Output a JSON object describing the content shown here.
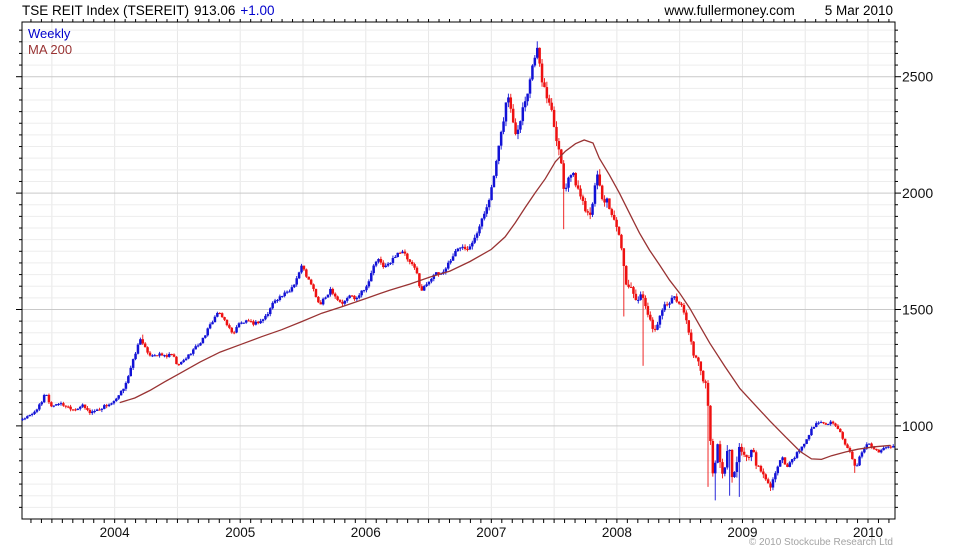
{
  "header": {
    "title": "TSE REIT Index (TSEREIT)",
    "last_price": "913.06",
    "change": "+1.00",
    "website": "www.fullermoney.com",
    "date": "5 Mar 2010"
  },
  "legend": {
    "series_1_label": "Weekly",
    "series_2_label": "MA 200"
  },
  "footer": {
    "copyright": "© 2010 Stockcube Research Ltd"
  },
  "colors": {
    "candle_up": "#1212d6",
    "candle_down": "#ee1111",
    "ma_line": "#993333",
    "legend_weekly": "#0000cc",
    "legend_ma": "#993333",
    "change_text": "#0000cc",
    "grid_minor": "#ededed",
    "grid_major": "#c9c9c9",
    "grid_vertical": "#e7e7e7",
    "axis": "#000000",
    "label_text": "#111111",
    "copyright_text": "#a3a3a3"
  },
  "chart_data": {
    "type": "candlestick",
    "title": "TSE REIT Index (TSEREIT) weekly candles with MA 200",
    "last_close": 913.06,
    "change": "+1.00",
    "x_axis": {
      "start_decimal_year": 2003.262,
      "end_decimal_year": 2010.215,
      "year_tick_labels": [
        "2004",
        "2005",
        "2006",
        "2007",
        "2008",
        "2009",
        "2010"
      ],
      "minor_ticks": "monthly",
      "vertical_gridlines": "January and July"
    },
    "y_axis": {
      "min": 600,
      "max": 2735,
      "minor_step": 50,
      "major_step": 500,
      "tick_labels": [
        "1000",
        "1500",
        "2000",
        "2500"
      ],
      "side": "right"
    },
    "series": [
      {
        "name": "Weekly",
        "type": "candlestick",
        "close_path": [
          [
            2003.27,
            1030
          ],
          [
            2003.34,
            1048
          ],
          [
            2003.42,
            1100
          ],
          [
            2003.45,
            1148
          ],
          [
            2003.49,
            1082
          ],
          [
            2003.55,
            1098
          ],
          [
            2003.62,
            1084
          ],
          [
            2003.68,
            1070
          ],
          [
            2003.74,
            1088
          ],
          [
            2003.8,
            1058
          ],
          [
            2003.87,
            1070
          ],
          [
            2003.93,
            1088
          ],
          [
            2004.0,
            1102
          ],
          [
            2004.06,
            1150
          ],
          [
            2004.12,
            1230
          ],
          [
            2004.17,
            1322
          ],
          [
            2004.21,
            1380
          ],
          [
            2004.26,
            1308
          ],
          [
            2004.34,
            1306
          ],
          [
            2004.42,
            1300
          ],
          [
            2004.46,
            1308
          ],
          [
            2004.5,
            1256
          ],
          [
            2004.57,
            1292
          ],
          [
            2004.63,
            1330
          ],
          [
            2004.69,
            1362
          ],
          [
            2004.76,
            1432
          ],
          [
            2004.82,
            1488
          ],
          [
            2004.88,
            1452
          ],
          [
            2004.94,
            1392
          ],
          [
            2004.98,
            1436
          ],
          [
            2005.04,
            1448
          ],
          [
            2005.11,
            1440
          ],
          [
            2005.17,
            1452
          ],
          [
            2005.22,
            1482
          ],
          [
            2005.27,
            1540
          ],
          [
            2005.33,
            1558
          ],
          [
            2005.39,
            1578
          ],
          [
            2005.44,
            1622
          ],
          [
            2005.49,
            1688
          ],
          [
            2005.54,
            1630
          ],
          [
            2005.59,
            1578
          ],
          [
            2005.63,
            1516
          ],
          [
            2005.68,
            1552
          ],
          [
            2005.72,
            1590
          ],
          [
            2005.78,
            1540
          ],
          [
            2005.82,
            1524
          ],
          [
            2005.87,
            1562
          ],
          [
            2005.92,
            1548
          ],
          [
            2005.97,
            1582
          ],
          [
            2006.02,
            1608
          ],
          [
            2006.06,
            1688
          ],
          [
            2006.1,
            1712
          ],
          [
            2006.15,
            1682
          ],
          [
            2006.2,
            1702
          ],
          [
            2006.25,
            1746
          ],
          [
            2006.3,
            1744
          ],
          [
            2006.35,
            1700
          ],
          [
            2006.4,
            1670
          ],
          [
            2006.44,
            1578
          ],
          [
            2006.49,
            1615
          ],
          [
            2006.54,
            1650
          ],
          [
            2006.61,
            1655
          ],
          [
            2006.67,
            1710
          ],
          [
            2006.72,
            1752
          ],
          [
            2006.77,
            1778
          ],
          [
            2006.81,
            1762
          ],
          [
            2006.85,
            1798
          ],
          [
            2006.9,
            1846
          ],
          [
            2006.95,
            1922
          ],
          [
            2007.0,
            2012
          ],
          [
            2007.05,
            2162
          ],
          [
            2007.09,
            2292
          ],
          [
            2007.13,
            2432
          ],
          [
            2007.17,
            2312
          ],
          [
            2007.2,
            2256
          ],
          [
            2007.25,
            2366
          ],
          [
            2007.29,
            2442
          ],
          [
            2007.33,
            2552
          ],
          [
            2007.36,
            2638
          ],
          [
            2007.39,
            2525
          ],
          [
            2007.43,
            2422
          ],
          [
            2007.47,
            2392
          ],
          [
            2007.51,
            2266
          ],
          [
            2007.55,
            2162
          ],
          [
            2007.58,
            2005
          ],
          [
            2007.62,
            2090
          ],
          [
            2007.66,
            2064
          ],
          [
            2007.7,
            2002
          ],
          [
            2007.74,
            1948
          ],
          [
            2007.78,
            1906
          ],
          [
            2007.82,
            2002
          ],
          [
            2007.85,
            2088
          ],
          [
            2007.89,
            1945
          ],
          [
            2007.92,
            1990
          ],
          [
            2007.95,
            1905
          ],
          [
            2007.99,
            1858
          ],
          [
            2008.02,
            1815
          ],
          [
            2008.05,
            1692
          ],
          [
            2008.08,
            1602
          ],
          [
            2008.12,
            1586
          ],
          [
            2008.16,
            1545
          ],
          [
            2008.2,
            1556
          ],
          [
            2008.24,
            1498
          ],
          [
            2008.28,
            1415
          ],
          [
            2008.32,
            1432
          ],
          [
            2008.36,
            1502
          ],
          [
            2008.4,
            1526
          ],
          [
            2008.44,
            1546
          ],
          [
            2008.47,
            1548
          ],
          [
            2008.51,
            1520
          ],
          [
            2008.55,
            1462
          ],
          [
            2008.58,
            1390
          ],
          [
            2008.61,
            1310
          ],
          [
            2008.64,
            1285
          ],
          [
            2008.67,
            1220
          ],
          [
            2008.7,
            1190
          ],
          [
            2008.72,
            1135
          ],
          [
            2008.735,
            985
          ],
          [
            2008.77,
            772
          ],
          [
            2008.8,
            920
          ],
          [
            2008.83,
            795
          ],
          [
            2008.86,
            820
          ],
          [
            2008.89,
            930
          ],
          [
            2008.92,
            765
          ],
          [
            2008.95,
            800
          ],
          [
            2008.97,
            928
          ],
          [
            2009.0,
            878
          ],
          [
            2009.04,
            858
          ],
          [
            2009.08,
            905
          ],
          [
            2009.12,
            820
          ],
          [
            2009.16,
            790
          ],
          [
            2009.2,
            762
          ],
          [
            2009.23,
            740
          ],
          [
            2009.27,
            822
          ],
          [
            2009.31,
            870
          ],
          [
            2009.35,
            818
          ],
          [
            2009.39,
            845
          ],
          [
            2009.43,
            880
          ],
          [
            2009.47,
            902
          ],
          [
            2009.51,
            945
          ],
          [
            2009.55,
            985
          ],
          [
            2009.59,
            1010
          ],
          [
            2009.63,
            1022
          ],
          [
            2009.67,
            1008
          ],
          [
            2009.7,
            1018
          ],
          [
            2009.74,
            995
          ],
          [
            2009.78,
            968
          ],
          [
            2009.82,
            912
          ],
          [
            2009.86,
            880
          ],
          [
            2009.88,
            848
          ],
          [
            2009.9,
            812
          ],
          [
            2009.93,
            865
          ],
          [
            2009.96,
            892
          ],
          [
            2010.0,
            928
          ],
          [
            2010.04,
            905
          ],
          [
            2010.08,
            888
          ],
          [
            2010.12,
            902
          ],
          [
            2010.16,
            908
          ],
          [
            2010.19,
            913
          ]
        ],
        "notable_low_wicks": [
          [
            2007.58,
            1845
          ],
          [
            2008.05,
            1470
          ],
          [
            2008.21,
            1258
          ],
          [
            2008.73,
            738
          ],
          [
            2008.79,
            680
          ],
          [
            2008.9,
            700
          ],
          [
            2008.98,
            695
          ],
          [
            2009.23,
            724
          ],
          [
            2009.9,
            798
          ]
        ],
        "notable_high_wicks": [
          [
            2004.22,
            1392
          ],
          [
            2007.36,
            2652
          ]
        ],
        "volatility_profile": [
          [
            2003.3,
            13
          ],
          [
            2004.1,
            22
          ],
          [
            2004.5,
            16
          ],
          [
            2005.0,
            17
          ],
          [
            2005.5,
            22
          ],
          [
            2006.1,
            21
          ],
          [
            2006.45,
            22
          ],
          [
            2007.0,
            30
          ],
          [
            2007.2,
            48
          ],
          [
            2007.5,
            52
          ],
          [
            2007.8,
            48
          ],
          [
            2008.1,
            42
          ],
          [
            2008.45,
            28
          ],
          [
            2008.7,
            48
          ],
          [
            2008.85,
            55
          ],
          [
            2009.1,
            40
          ],
          [
            2009.35,
            26
          ],
          [
            2009.6,
            17
          ],
          [
            2009.9,
            20
          ],
          [
            2010.19,
            12
          ]
        ]
      },
      {
        "name": "MA 200",
        "type": "line",
        "path": [
          [
            2004.04,
            1100
          ],
          [
            2004.16,
            1120
          ],
          [
            2004.28,
            1152
          ],
          [
            2004.4,
            1190
          ],
          [
            2004.52,
            1226
          ],
          [
            2004.68,
            1274
          ],
          [
            2004.84,
            1317
          ],
          [
            2005.01,
            1351
          ],
          [
            2005.17,
            1383
          ],
          [
            2005.33,
            1413
          ],
          [
            2005.49,
            1448
          ],
          [
            2005.65,
            1484
          ],
          [
            2005.81,
            1512
          ],
          [
            2006.01,
            1549
          ],
          [
            2006.19,
            1583
          ],
          [
            2006.35,
            1609
          ],
          [
            2006.51,
            1639
          ],
          [
            2006.67,
            1665
          ],
          [
            2006.83,
            1706
          ],
          [
            2007.0,
            1758
          ],
          [
            2007.11,
            1812
          ],
          [
            2007.19,
            1872
          ],
          [
            2007.27,
            1938
          ],
          [
            2007.35,
            2002
          ],
          [
            2007.43,
            2062
          ],
          [
            2007.51,
            2135
          ],
          [
            2007.59,
            2180
          ],
          [
            2007.67,
            2212
          ],
          [
            2007.74,
            2228
          ],
          [
            2007.81,
            2215
          ],
          [
            2007.86,
            2150
          ],
          [
            2007.94,
            2078
          ],
          [
            2008.02,
            2000
          ],
          [
            2008.1,
            1914
          ],
          [
            2008.18,
            1828
          ],
          [
            2008.26,
            1755
          ],
          [
            2008.34,
            1691
          ],
          [
            2008.42,
            1626
          ],
          [
            2008.5,
            1570
          ],
          [
            2008.58,
            1506
          ],
          [
            2008.66,
            1430
          ],
          [
            2008.74,
            1355
          ],
          [
            2008.86,
            1255
          ],
          [
            2008.98,
            1160
          ],
          [
            2009.1,
            1090
          ],
          [
            2009.22,
            1020
          ],
          [
            2009.34,
            955
          ],
          [
            2009.46,
            890
          ],
          [
            2009.55,
            858
          ],
          [
            2009.63,
            856
          ],
          [
            2009.71,
            872
          ],
          [
            2009.82,
            888
          ],
          [
            2009.92,
            900
          ],
          [
            2010.05,
            910
          ],
          [
            2010.18,
            916
          ]
        ]
      }
    ]
  }
}
